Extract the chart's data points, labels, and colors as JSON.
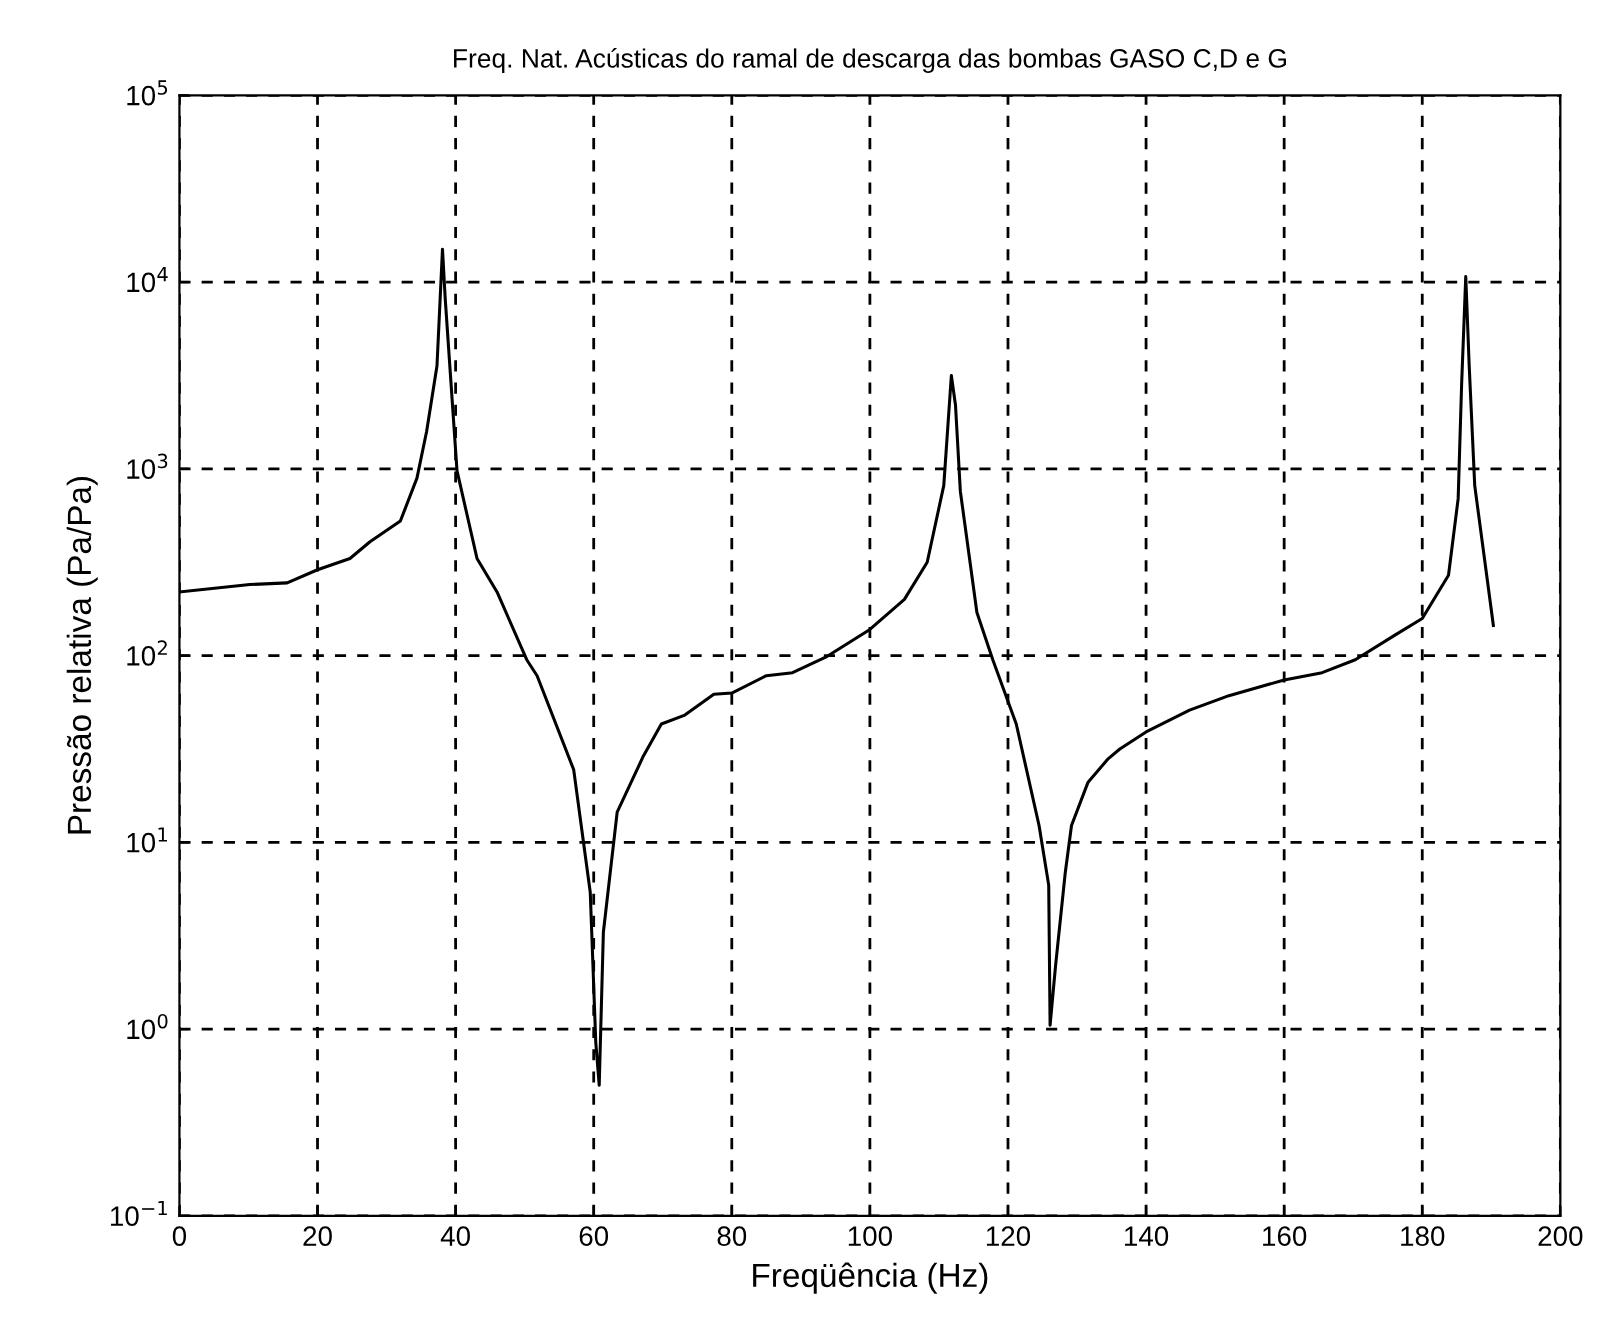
{
  "chart_data": {
    "type": "line",
    "title": "Freq. Nat. Acústicas do ramal de descarga das bombas GASO C,D e G",
    "xlabel": "Freqüência (Hz)",
    "ylabel": "Pressão relativa (Pa/Pa)",
    "log": "y",
    "grid": true,
    "line_style": "solid",
    "marker": "none",
    "xlim": [
      0,
      200
    ],
    "xticks": [
      0,
      20,
      40,
      60,
      80,
      100,
      120,
      140,
      160,
      180,
      200
    ],
    "ylim": [
      0.1,
      100000
    ],
    "yticks": [
      {
        "value": 0.1,
        "label": "10$^{−1}$"
      },
      {
        "value": 1,
        "label": "10$^{0}$"
      },
      {
        "value": 10,
        "label": "10$^{1}$"
      },
      {
        "value": 100,
        "label": "10$^{2}$"
      },
      {
        "value": 1000,
        "label": "10$^{3}$"
      },
      {
        "value": 10000,
        "label": "10$^{4}$"
      },
      {
        "value": 100000,
        "label": "10$^{5}$"
      }
    ],
    "series": [
      {
        "color": "#000000",
        "x": [
          0,
          10.2,
          15.6,
          20,
          24.7,
          27.6,
          32,
          34.4,
          35.8,
          37.3,
          38.1,
          38.5,
          40.2,
          43.1,
          46,
          50.3,
          51.8,
          57.1,
          59.5,
          60.3,
          60.8,
          61.4,
          63.4,
          67.2,
          69.8,
          73.2,
          77.4,
          80,
          85,
          88.8,
          93.6,
          100,
          105,
          108.3,
          110.7,
          111.8,
          112.4,
          113.1,
          115.5,
          117.8,
          121.2,
          124.5,
          125.9,
          126.1,
          126.9,
          128.3,
          129.2,
          131.6,
          134.5,
          136.2,
          140,
          146.3,
          152,
          160,
          165.5,
          170.3,
          176.1,
          180,
          183.8,
          185.2,
          185.7,
          186.3,
          186.8,
          187.6,
          190.3
        ],
        "values": [
          219,
          240,
          245,
          288,
          331,
          407,
          525,
          891,
          1585,
          3550,
          15000,
          8100,
          977,
          331,
          219,
          95,
          78,
          24.5,
          5.4,
          0.85,
          0.5,
          3.3,
          14.5,
          29,
          43,
          48,
          62,
          63,
          78,
          81,
          98,
          138,
          200,
          316,
          813,
          3160,
          2190,
          759,
          170,
          95,
          43,
          12.3,
          5.9,
          1.05,
          2.2,
          6.9,
          12.3,
          21,
          28,
          31.6,
          39,
          51,
          61,
          74,
          81,
          95,
          129,
          158,
          269,
          692,
          2820,
          10700,
          3550,
          813,
          145
        ]
      }
    ]
  }
}
